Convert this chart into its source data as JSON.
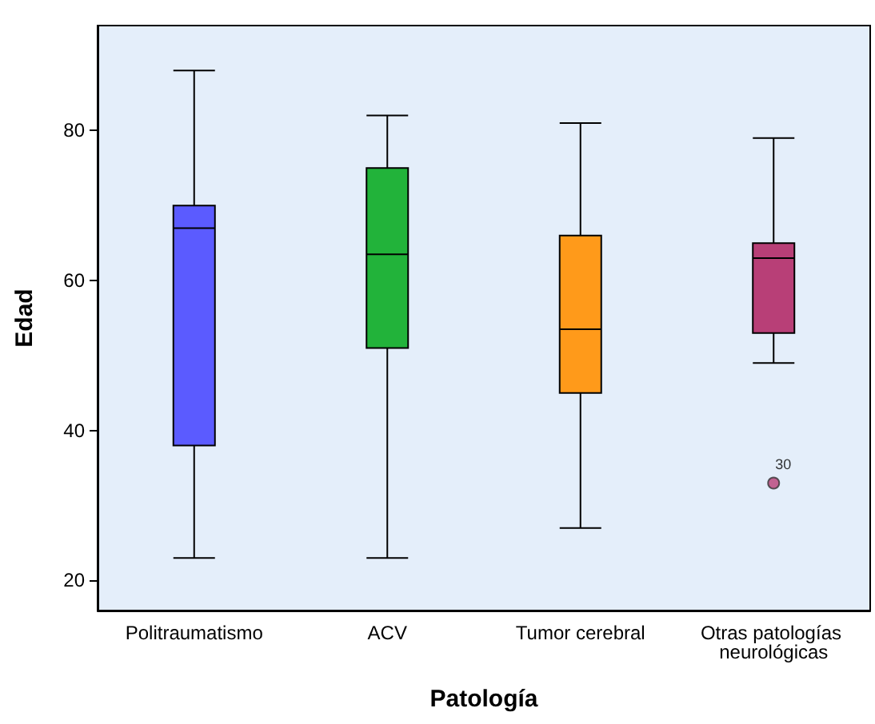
{
  "chart_data": {
    "type": "box",
    "xlabel": "Patología",
    "ylabel": "Edad",
    "categories": [
      "Politraumatismo",
      "ACV",
      "Tumor cerebral",
      "Otras patologías neurológicas"
    ],
    "colors": [
      "#5b5bff",
      "#22b33a",
      "#ff9a1a",
      "#b83f77"
    ],
    "boxes": [
      {
        "low": 23,
        "q1": 38,
        "median": 67,
        "q3": 70,
        "high": 88
      },
      {
        "low": 23,
        "q1": 51,
        "median": 63.5,
        "q3": 75,
        "high": 82
      },
      {
        "low": 27,
        "q1": 45,
        "median": 53.5,
        "q3": 66,
        "high": 81
      },
      {
        "low": 49,
        "q1": 53,
        "median": 63,
        "q3": 65,
        "high": 79,
        "outliers": [
          33
        ]
      }
    ],
    "annotations": [
      "30"
    ],
    "ylim": [
      16,
      94
    ],
    "yticks": [
      20,
      40,
      60,
      80
    ],
    "grid": false,
    "legend": false
  }
}
